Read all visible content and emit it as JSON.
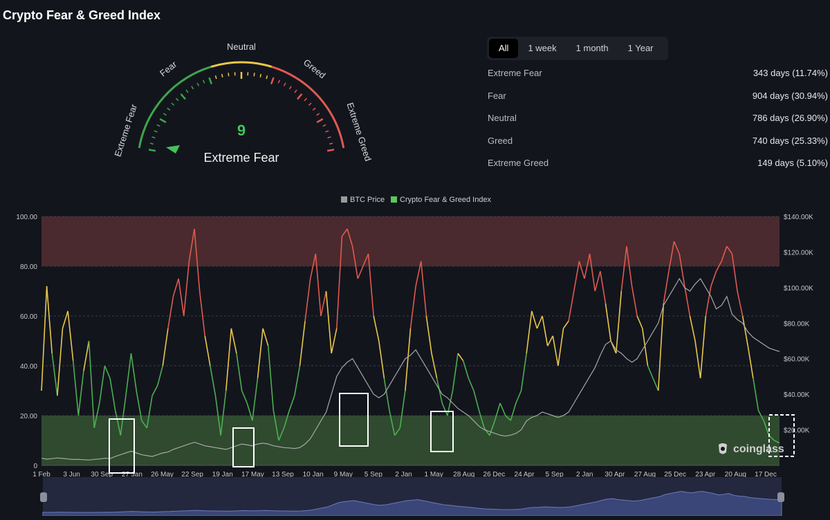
{
  "page": {
    "title": "Crypto Fear & Greed Index"
  },
  "gauge": {
    "value": 9,
    "classification": "Extreme Fear",
    "labels": {
      "extreme_fear": "Extreme Fear",
      "fear": "Fear",
      "neutral": "Neutral",
      "greed": "Greed",
      "extreme_greed": "Extreme Greed"
    },
    "colors": {
      "fear": "#3ea64a",
      "neutral": "#e8c84a",
      "greed": "#e05a4e",
      "value": "#45c25a"
    }
  },
  "tabs": [
    {
      "label": "All",
      "active": true
    },
    {
      "label": "1 week",
      "active": false
    },
    {
      "label": "1 month",
      "active": false
    },
    {
      "label": "1 Year",
      "active": false
    }
  ],
  "stats": [
    {
      "label": "Extreme Fear",
      "value": "343 days (11.74%)"
    },
    {
      "label": "Fear",
      "value": "904 days (30.94%)"
    },
    {
      "label": "Neutral",
      "value": "786 days (26.90%)"
    },
    {
      "label": "Greed",
      "value": "740 days (25.33%)"
    },
    {
      "label": "Extreme Greed",
      "value": "149 days (5.10%)"
    }
  ],
  "brand": {
    "name": "coinglass"
  },
  "chart_data": {
    "type": "line",
    "legend": [
      {
        "name": "BTC Price",
        "color": "#9a9a9a"
      },
      {
        "name": "Crypto Fear & Greed Index",
        "color": "#59c95c"
      }
    ],
    "legend_position": "top-center",
    "y_left": {
      "ticks": [
        "0",
        "20.00",
        "40.00",
        "60.00",
        "80.00",
        "100.00"
      ],
      "range": [
        0,
        100
      ]
    },
    "y_right": {
      "ticks": [
        "",
        "$20.00K",
        "$40.00K",
        "$60.00K",
        "$80.00K",
        "$100.00K",
        "$120.00K",
        "$140.00K"
      ],
      "range": [
        0,
        140000
      ]
    },
    "x_ticks": [
      "1 Feb",
      "3 Jun",
      "30 Sep",
      "27 Jan",
      "26 May",
      "22 Sep",
      "19 Jan",
      "17 May",
      "13 Sep",
      "10 Jan",
      "9 May",
      "5 Sep",
      "2 Jan",
      "1 May",
      "28 Aug",
      "26 Dec",
      "24 Apr",
      "5 Sep",
      "2 Jan",
      "30 Apr",
      "27 Aug",
      "25 Dec",
      "23 Apr",
      "20 Aug",
      "17 Dec"
    ],
    "zones": [
      {
        "from": 0,
        "to": 20,
        "color": "#2f4a2f"
      },
      {
        "from": 20,
        "to": 40,
        "color": "#13151d"
      },
      {
        "from": 40,
        "to": 60,
        "color": "#13151d"
      },
      {
        "from": 60,
        "to": 80,
        "color": "#13151d"
      },
      {
        "from": 80,
        "to": 100,
        "color": "#4a2a2e"
      }
    ],
    "band_colors": [
      "#4caf50",
      "#4caf50",
      "#e8c84a",
      "#e05a4e",
      "#e05a4e"
    ],
    "fng_series": {
      "name": "Crypto Fear & Greed Index",
      "values": [
        30,
        72,
        45,
        28,
        55,
        62,
        42,
        20,
        38,
        50,
        15,
        25,
        40,
        35,
        22,
        12,
        28,
        45,
        30,
        18,
        15,
        28,
        32,
        40,
        55,
        68,
        75,
        60,
        82,
        95,
        70,
        52,
        40,
        28,
        12,
        30,
        55,
        45,
        30,
        25,
        18,
        35,
        55,
        48,
        22,
        10,
        15,
        22,
        28,
        40,
        58,
        75,
        85,
        60,
        70,
        45,
        55,
        92,
        95,
        88,
        75,
        80,
        85,
        60,
        50,
        35,
        22,
        12,
        15,
        30,
        55,
        72,
        82,
        60,
        45,
        35,
        25,
        20,
        30,
        45,
        42,
        35,
        30,
        22,
        15,
        12,
        18,
        25,
        20,
        18,
        25,
        30,
        45,
        62,
        55,
        60,
        48,
        52,
        40,
        55,
        58,
        70,
        82,
        75,
        85,
        70,
        78,
        65,
        50,
        45,
        70,
        88,
        72,
        60,
        55,
        40,
        35,
        30,
        65,
        78,
        90,
        85,
        72,
        60,
        50,
        35,
        60,
        72,
        78,
        82,
        88,
        85,
        70,
        60,
        48,
        35,
        22,
        18,
        12,
        10,
        9
      ]
    },
    "btc_series": {
      "name": "BTC Price",
      "values": [
        4000,
        3500,
        3800,
        4200,
        3900,
        3600,
        3300,
        3400,
        3200,
        3000,
        3400,
        3600,
        4000,
        3800,
        5000,
        6000,
        7000,
        8000,
        7000,
        6000,
        5500,
        5000,
        6000,
        7000,
        7500,
        9000,
        10000,
        11000,
        12000,
        13000,
        12000,
        11000,
        10500,
        10000,
        9500,
        9000,
        10000,
        11000,
        12000,
        11500,
        11000,
        12000,
        12500,
        12000,
        11000,
        10500,
        10000,
        9800,
        9500,
        10000,
        12000,
        15000,
        20000,
        25000,
        30000,
        40000,
        50000,
        55000,
        58000,
        60000,
        55000,
        50000,
        45000,
        40000,
        38000,
        40000,
        45000,
        50000,
        55000,
        60000,
        62000,
        65000,
        60000,
        55000,
        50000,
        45000,
        40000,
        38000,
        35000,
        32000,
        30000,
        28000,
        25000,
        22000,
        20000,
        19000,
        18000,
        17000,
        16500,
        17000,
        18000,
        20000,
        25000,
        27000,
        28000,
        30000,
        29000,
        28000,
        27000,
        28000,
        30000,
        35000,
        40000,
        45000,
        50000,
        55000,
        62000,
        68000,
        70000,
        65000,
        63000,
        60000,
        58000,
        60000,
        65000,
        70000,
        75000,
        80000,
        90000,
        95000,
        100000,
        105000,
        100000,
        98000,
        102000,
        105000,
        100000,
        95000,
        88000,
        90000,
        95000,
        85000,
        82000,
        80000,
        75000,
        72000,
        70000,
        68000,
        66000,
        65000,
        64000
      ]
    }
  }
}
